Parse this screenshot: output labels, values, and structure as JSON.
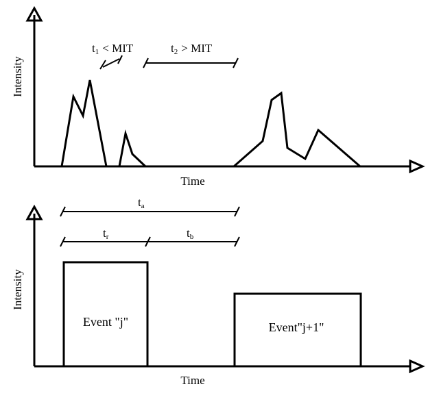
{
  "top_panel": {
    "y_axis_label": "Intensity",
    "x_axis_label": "Time",
    "interval_1": {
      "t": "t",
      "sub": "1",
      "relation": "< MIT"
    },
    "interval_2": {
      "t": "t",
      "sub": "2",
      "relation": "> MIT"
    }
  },
  "bottom_panel": {
    "y_axis_label": "Intensity",
    "x_axis_label": "Time",
    "interval_a": {
      "t": "t",
      "sub": "a"
    },
    "interval_r": {
      "t": "t",
      "sub": "r"
    },
    "interval_b": {
      "t": "t",
      "sub": "b"
    },
    "event_j": "Event \"j\"",
    "event_j1": "Event\"j+1\""
  }
}
